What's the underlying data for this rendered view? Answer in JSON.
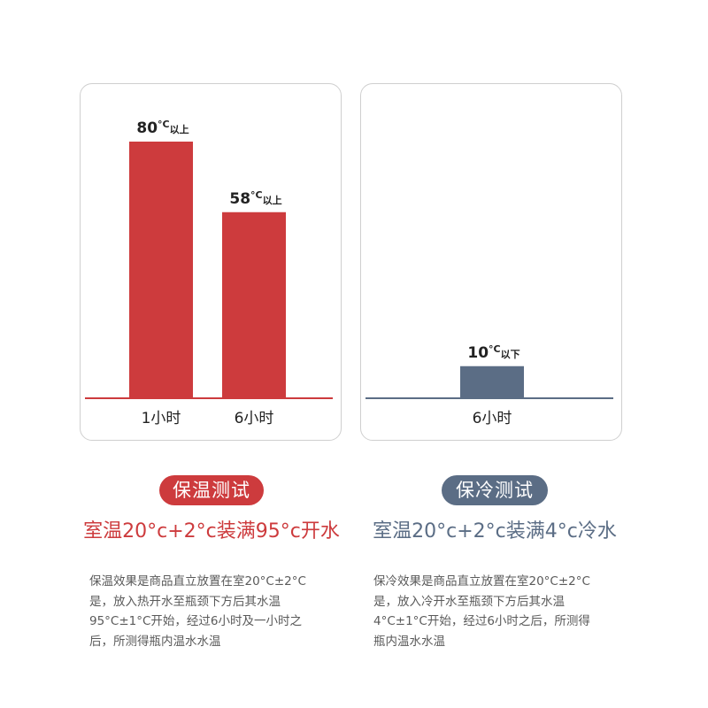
{
  "colors": {
    "warm": "#cd3b3d",
    "cold": "#5b6d85",
    "panel_border": "#cfcfcf"
  },
  "chart_data": [
    {
      "type": "bar",
      "title": "",
      "categories": [
        "1小时",
        "6小时"
      ],
      "values": [
        80,
        58
      ],
      "value_labels": [
        {
          "num": "80",
          "unit": "°C",
          "suffix": "以上"
        },
        {
          "num": "58",
          "unit": "°C",
          "suffix": "以上"
        }
      ],
      "ylim": [
        0,
        80
      ],
      "grid": false,
      "color": "#cd3b3d"
    },
    {
      "type": "bar",
      "title": "",
      "categories": [
        "6小时"
      ],
      "values": [
        10
      ],
      "value_labels": [
        {
          "num": "10",
          "unit": "°C",
          "suffix": "以下"
        }
      ],
      "ylim": [
        0,
        80
      ],
      "grid": false,
      "color": "#5b6d85"
    }
  ],
  "warm_section": {
    "badge": "保温测试",
    "condition": "室温20°c+2°c装满95°c开水",
    "description": "保温效果是商品直立放置在室20°C±2°C\n是，放入热开水至瓶颈下方后其水温\n95°C±1°C开始，经过6小时及一小时之\n后，所测得瓶内温水水温"
  },
  "cold_section": {
    "badge": "保冷测试",
    "condition": "室温20°c+2°c装满4°c冷水",
    "description": "保冷效果是商品直立放置在室20°C±2°C\n是，放入冷开水至瓶颈下方后其水温\n4°C±1°C开始，经过6小时之后，所测得\n瓶内温水水温"
  }
}
